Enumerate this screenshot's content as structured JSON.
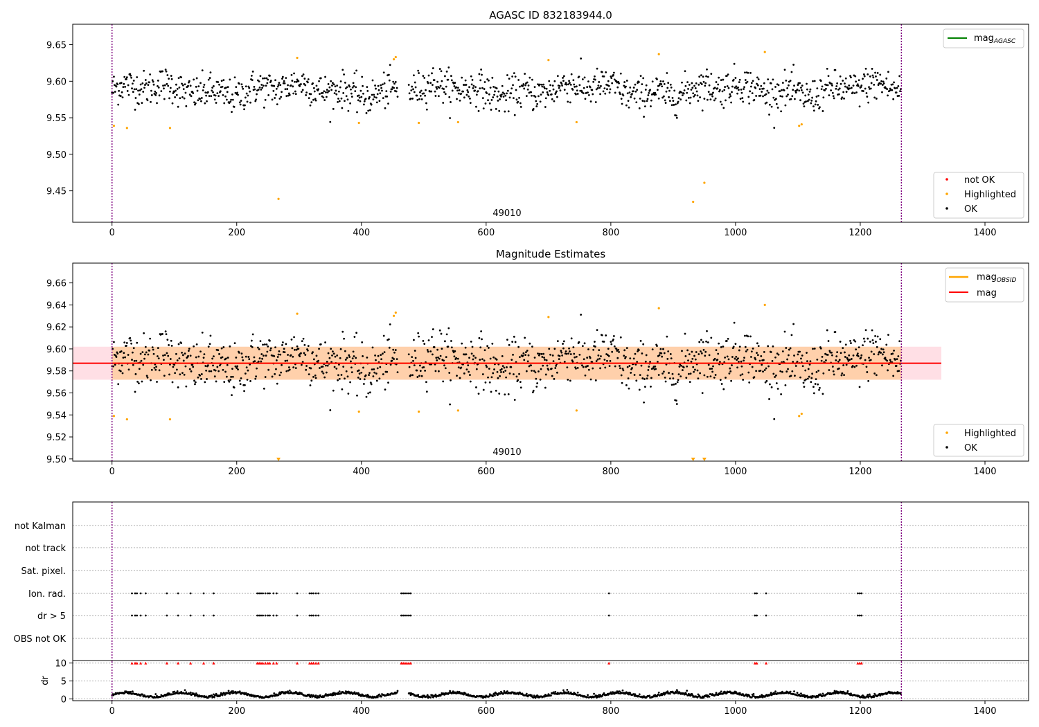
{
  "figure": {
    "title": "AGASC ID 832183944.0",
    "panel2_title": "Magnitude Estimates",
    "obsid_label": "49010",
    "legend_top_right": [
      {
        "label": "mag",
        "subscript": "AGASC",
        "color": "#008000"
      }
    ],
    "legend_top_bottom": [
      {
        "label": "not OK",
        "color": "#ff0000"
      },
      {
        "label": "Highlighted",
        "color": "#ffa500"
      },
      {
        "label": "OK",
        "color": "#000000"
      }
    ],
    "legend_mid_right": [
      {
        "label": "mag",
        "subscript": "OBSID",
        "color": "#ffa500"
      },
      {
        "label": "mag",
        "subscript": "",
        "color": "#ff0000"
      }
    ],
    "legend_mid_bottom": [
      {
        "label": "Highlighted",
        "color": "#ffa500"
      },
      {
        "label": "OK",
        "color": "#000000"
      }
    ],
    "flag_labels": [
      "not Kalman",
      "not track",
      "Sat. pixel.",
      "Ion. rad.",
      "dr > 5",
      "OBS not OK"
    ],
    "dr_ylabel": "dr"
  },
  "chart_data": [
    {
      "type": "scatter",
      "title": "AGASC ID 832183944.0",
      "xlim": [
        -63,
        1470
      ],
      "ylim": [
        9.407,
        9.678
      ],
      "xticks": [
        0,
        200,
        400,
        600,
        800,
        1000,
        1200,
        1400
      ],
      "yticks": [
        9.45,
        9.5,
        9.55,
        9.6,
        9.65
      ],
      "grid": false,
      "legend": [
        "top-right",
        "bottom-right"
      ],
      "obsid_boundaries": [
        0,
        1266
      ],
      "series": [
        {
          "name": "OK",
          "color": "#000000",
          "description_points": 1266,
          "values_mean": 9.588,
          "values_std": 0.015
        },
        {
          "name": "Highlighted",
          "color": "#ffa500",
          "x": [
            3,
            24,
            93,
            267,
            297,
            396,
            452,
            455,
            492,
            555,
            700,
            745,
            877,
            932,
            950,
            1047,
            1102,
            1106
          ],
          "y": [
            9.539,
            9.536,
            9.536,
            9.439,
            9.632,
            9.543,
            9.63,
            9.633,
            9.543,
            9.544,
            9.629,
            9.544,
            9.637,
            9.435,
            9.461,
            9.64,
            9.539,
            9.541
          ]
        },
        {
          "name": "not OK",
          "color": "#ff0000",
          "x": [],
          "y": []
        }
      ],
      "reference_line": {
        "name": "mag AGASC",
        "value": null,
        "color": "#008000"
      }
    },
    {
      "type": "scatter",
      "title": "Magnitude Estimates",
      "xlim": [
        -63,
        1470
      ],
      "ylim": [
        9.498,
        9.678
      ],
      "xticks": [
        0,
        200,
        400,
        600,
        800,
        1000,
        1200,
        1400
      ],
      "yticks": [
        9.5,
        9.52,
        9.54,
        9.56,
        9.58,
        9.6,
        9.62,
        9.64,
        9.66
      ],
      "grid": false,
      "legend": [
        "top-right",
        "bottom-right"
      ],
      "mag": 9.587,
      "mag_band": [
        9.572,
        9.602
      ],
      "mag_band_x": [
        -63,
        1330
      ],
      "mag_obsid": 9.587,
      "mag_obsid_band": [
        9.572,
        9.602
      ],
      "mag_obsid_band_x": [
        0,
        1266
      ],
      "series": [
        {
          "name": "OK",
          "color": "#000000"
        },
        {
          "name": "Highlighted",
          "color": "#ffa500",
          "x": [
            3,
            24,
            93,
            297,
            396,
            452,
            455,
            492,
            555,
            700,
            745,
            877,
            1047,
            1102,
            1106
          ],
          "y": [
            9.539,
            9.536,
            9.536,
            9.632,
            9.543,
            9.63,
            9.633,
            9.543,
            9.544,
            9.629,
            9.544,
            9.637,
            9.64,
            9.539,
            9.541
          ]
        },
        {
          "name": "Highlighted (clipped)",
          "color": "#ffa500",
          "x": [
            267,
            932,
            950
          ],
          "y": [
            9.499,
            9.499,
            9.499
          ]
        }
      ]
    },
    {
      "type": "scatter",
      "title": "",
      "xlim": [
        -63,
        1470
      ],
      "categories": [
        "not Kalman",
        "not track",
        "Sat. pixel.",
        "Ion. rad.",
        "dr > 5",
        "OBS not OK"
      ],
      "flag_x": {
        "Ion. rad.": [
          32,
          37,
          40,
          46,
          54,
          88,
          106,
          126,
          147,
          163,
          233,
          236,
          239,
          242,
          246,
          250,
          253,
          259,
          264,
          297,
          317,
          320,
          323,
          327,
          331,
          464,
          467,
          470,
          473,
          476,
          479,
          797,
          1031,
          1034,
          1049,
          1196,
          1199,
          1202
        ],
        "dr > 5": [
          32,
          37,
          40,
          46,
          54,
          88,
          106,
          126,
          147,
          163,
          233,
          236,
          239,
          242,
          246,
          250,
          253,
          259,
          264,
          297,
          317,
          320,
          323,
          327,
          331,
          464,
          467,
          470,
          473,
          476,
          479,
          797,
          1031,
          1034,
          1049,
          1196,
          1199,
          1202
        ]
      },
      "dr_ylim": [
        -0.5,
        10.5
      ],
      "dr_yticks": [
        0,
        5,
        10
      ],
      "dr_ylabel": "dr",
      "dr_clipped_x": [
        32,
        37,
        40,
        46,
        54,
        88,
        106,
        126,
        147,
        163,
        233,
        236,
        239,
        242,
        246,
        250,
        253,
        259,
        264,
        297,
        317,
        320,
        323,
        327,
        331,
        464,
        467,
        470,
        473,
        476,
        479,
        797,
        1031,
        1034,
        1049,
        1196,
        1199,
        1202
      ],
      "dr_clipped_value": 10,
      "dr_typical": [
        0.4,
        2.8
      ]
    }
  ]
}
